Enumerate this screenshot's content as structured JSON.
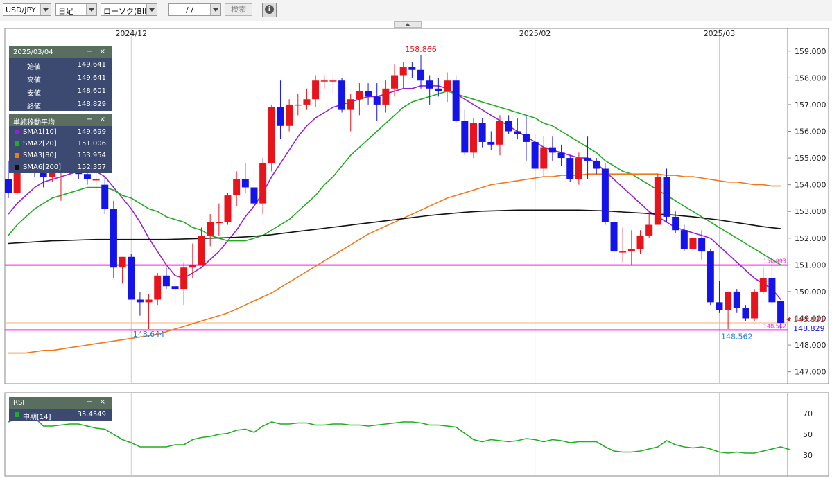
{
  "toolbar": {
    "pair": "USD/JPY",
    "period": "日足",
    "chart_kind": "ローソク(BID)",
    "date_input": "/ /",
    "search_label": "検索",
    "info_icon": "info-icon"
  },
  "ohlc_panel": {
    "date": "2025/03/04",
    "minimize": "−",
    "close": "×",
    "rows": [
      {
        "label": "始値",
        "value": "149.641"
      },
      {
        "label": "高値",
        "value": "149.641"
      },
      {
        "label": "安値",
        "value": "148.601"
      },
      {
        "label": "終値",
        "value": "148.829"
      }
    ]
  },
  "sma_panel": {
    "title": "単純移動平均",
    "minimize": "−",
    "close": "×",
    "rows": [
      {
        "label": "SMA1[10]",
        "value": "149.699",
        "color": "#9b1fd6"
      },
      {
        "label": "SMA2[20]",
        "value": "151.006",
        "color": "#1fae1f"
      },
      {
        "label": "SMA3[80]",
        "value": "153.954",
        "color": "#f07a1a"
      },
      {
        "label": "SMA6[200]",
        "value": "152.357",
        "color": "#111111"
      }
    ]
  },
  "rsi_panel": {
    "title": "RSI",
    "minimize": "−",
    "close": "×",
    "rows": [
      {
        "label": "中期[14]",
        "value": "35.4549",
        "color": "#1fae1f"
      }
    ]
  },
  "chart_data": {
    "type": "candlestick",
    "instrument": "USD/JPY",
    "x_labels": [
      {
        "label": "2024/12",
        "index": 14
      },
      {
        "label": "2025/02",
        "index": 60
      },
      {
        "label": "2025/03",
        "index": 81
      }
    ],
    "y_ticks": [
      147.0,
      148.0,
      149.0,
      150.0,
      151.0,
      152.0,
      153.0,
      154.0,
      155.0,
      156.0,
      157.0,
      158.0,
      159.0
    ],
    "y_tick_labels": [
      "147.000",
      "148.000",
      "149.000",
      "150.000",
      "151.000",
      "152.000",
      "153.000",
      "154.000",
      "155.000",
      "156.000",
      "157.000",
      "158.000",
      "159.000"
    ],
    "ylim": [
      146.55,
      159.85
    ],
    "up_color": "#e8141c",
    "down_color": "#1414e8",
    "candles": [
      {
        "o": 154.2,
        "h": 154.9,
        "l": 153.5,
        "c": 153.7
      },
      {
        "o": 153.7,
        "h": 155.2,
        "l": 153.6,
        "c": 155.0
      },
      {
        "o": 155.0,
        "h": 155.5,
        "l": 154.5,
        "c": 154.8
      },
      {
        "o": 154.8,
        "h": 155.4,
        "l": 154.3,
        "c": 154.5
      },
      {
        "o": 154.5,
        "h": 155.0,
        "l": 153.9,
        "c": 154.3
      },
      {
        "o": 154.3,
        "h": 155.0,
        "l": 154.1,
        "c": 154.7
      },
      {
        "o": 154.7,
        "h": 155.3,
        "l": 153.4,
        "c": 154.7
      },
      {
        "o": 154.7,
        "h": 155.3,
        "l": 154.4,
        "c": 155.1
      },
      {
        "o": 155.1,
        "h": 155.9,
        "l": 154.2,
        "c": 154.4
      },
      {
        "o": 154.4,
        "h": 154.8,
        "l": 154.0,
        "c": 154.2
      },
      {
        "o": 154.2,
        "h": 154.8,
        "l": 153.8,
        "c": 154.2
      },
      {
        "o": 154.0,
        "h": 154.3,
        "l": 152.9,
        "c": 153.1
      },
      {
        "o": 153.1,
        "h": 153.4,
        "l": 150.5,
        "c": 150.9
      },
      {
        "o": 150.9,
        "h": 151.3,
        "l": 150.3,
        "c": 151.3
      },
      {
        "o": 151.3,
        "h": 151.4,
        "l": 149.7,
        "c": 149.7
      },
      {
        "o": 149.7,
        "h": 150.0,
        "l": 149.1,
        "c": 149.6
      },
      {
        "o": 149.6,
        "h": 149.9,
        "l": 148.6,
        "c": 149.7
      },
      {
        "o": 149.7,
        "h": 150.7,
        "l": 149.5,
        "c": 150.6
      },
      {
        "o": 150.6,
        "h": 150.9,
        "l": 150.1,
        "c": 150.2
      },
      {
        "o": 150.2,
        "h": 150.4,
        "l": 149.5,
        "c": 150.1
      },
      {
        "o": 150.1,
        "h": 151.1,
        "l": 149.5,
        "c": 150.9
      },
      {
        "o": 150.9,
        "h": 151.8,
        "l": 150.5,
        "c": 151.0
      },
      {
        "o": 151.0,
        "h": 152.4,
        "l": 151.0,
        "c": 152.1
      },
      {
        "o": 152.1,
        "h": 152.9,
        "l": 151.7,
        "c": 152.6
      },
      {
        "o": 152.6,
        "h": 153.3,
        "l": 152.1,
        "c": 152.6
      },
      {
        "o": 152.6,
        "h": 153.7,
        "l": 152.5,
        "c": 153.6
      },
      {
        "o": 153.6,
        "h": 154.5,
        "l": 153.2,
        "c": 154.2
      },
      {
        "o": 154.2,
        "h": 154.8,
        "l": 153.7,
        "c": 153.9
      },
      {
        "o": 153.9,
        "h": 154.6,
        "l": 153.2,
        "c": 153.3
      },
      {
        "o": 153.3,
        "h": 155.0,
        "l": 152.9,
        "c": 154.8
      },
      {
        "o": 154.8,
        "h": 157.0,
        "l": 154.5,
        "c": 156.9
      },
      {
        "o": 156.9,
        "h": 157.9,
        "l": 155.7,
        "c": 156.2
      },
      {
        "o": 156.2,
        "h": 157.2,
        "l": 156.0,
        "c": 157.0
      },
      {
        "o": 157.0,
        "h": 157.4,
        "l": 156.6,
        "c": 157.0
      },
      {
        "o": 157.0,
        "h": 157.6,
        "l": 156.8,
        "c": 157.2
      },
      {
        "o": 157.2,
        "h": 158.1,
        "l": 156.9,
        "c": 157.9
      },
      {
        "o": 157.9,
        "h": 158.1,
        "l": 157.6,
        "c": 157.9
      },
      {
        "o": 157.9,
        "h": 158.1,
        "l": 157.4,
        "c": 157.9
      },
      {
        "o": 157.9,
        "h": 158.0,
        "l": 156.7,
        "c": 156.8
      },
      {
        "o": 156.8,
        "h": 157.4,
        "l": 156.0,
        "c": 157.2
      },
      {
        "o": 157.2,
        "h": 157.8,
        "l": 156.6,
        "c": 157.5
      },
      {
        "o": 157.5,
        "h": 157.8,
        "l": 157.0,
        "c": 157.3
      },
      {
        "o": 157.3,
        "h": 157.8,
        "l": 156.4,
        "c": 157.0
      },
      {
        "o": 157.0,
        "h": 157.9,
        "l": 156.7,
        "c": 157.6
      },
      {
        "o": 157.6,
        "h": 158.5,
        "l": 157.3,
        "c": 158.1
      },
      {
        "o": 158.1,
        "h": 158.6,
        "l": 157.6,
        "c": 158.4
      },
      {
        "o": 158.4,
        "h": 158.6,
        "l": 158.0,
        "c": 158.3
      },
      {
        "o": 158.3,
        "h": 158.866,
        "l": 157.6,
        "c": 157.9
      },
      {
        "o": 157.9,
        "h": 158.1,
        "l": 157.0,
        "c": 157.6
      },
      {
        "o": 157.6,
        "h": 158.0,
        "l": 157.3,
        "c": 157.5
      },
      {
        "o": 157.5,
        "h": 158.2,
        "l": 157.1,
        "c": 157.9
      },
      {
        "o": 157.9,
        "h": 158.1,
        "l": 156.3,
        "c": 156.4
      },
      {
        "o": 156.4,
        "h": 156.8,
        "l": 155.1,
        "c": 155.2
      },
      {
        "o": 155.2,
        "h": 156.5,
        "l": 155.0,
        "c": 156.3
      },
      {
        "o": 156.3,
        "h": 156.5,
        "l": 155.4,
        "c": 155.6
      },
      {
        "o": 155.6,
        "h": 156.0,
        "l": 155.3,
        "c": 155.5
      },
      {
        "o": 155.5,
        "h": 156.6,
        "l": 155.1,
        "c": 156.4
      },
      {
        "o": 156.4,
        "h": 156.6,
        "l": 155.9,
        "c": 156.0
      },
      {
        "o": 156.0,
        "h": 156.5,
        "l": 155.7,
        "c": 155.9
      },
      {
        "o": 155.9,
        "h": 156.6,
        "l": 154.9,
        "c": 155.6
      },
      {
        "o": 155.6,
        "h": 155.9,
        "l": 153.8,
        "c": 154.6
      },
      {
        "o": 154.6,
        "h": 155.8,
        "l": 154.3,
        "c": 155.4
      },
      {
        "o": 155.4,
        "h": 155.8,
        "l": 154.9,
        "c": 155.2
      },
      {
        "o": 155.2,
        "h": 155.5,
        "l": 154.7,
        "c": 155.0
      },
      {
        "o": 155.0,
        "h": 155.1,
        "l": 154.1,
        "c": 154.2
      },
      {
        "o": 154.2,
        "h": 155.2,
        "l": 154.0,
        "c": 155.0
      },
      {
        "o": 155.0,
        "h": 155.8,
        "l": 154.2,
        "c": 154.9
      },
      {
        "o": 154.9,
        "h": 155.0,
        "l": 154.4,
        "c": 154.6
      },
      {
        "o": 154.6,
        "h": 154.8,
        "l": 152.5,
        "c": 152.6
      },
      {
        "o": 152.6,
        "h": 153.0,
        "l": 151.0,
        "c": 151.5
      },
      {
        "o": 151.5,
        "h": 152.4,
        "l": 151.1,
        "c": 151.5
      },
      {
        "o": 151.5,
        "h": 152.3,
        "l": 151.0,
        "c": 151.6
      },
      {
        "o": 151.6,
        "h": 152.3,
        "l": 151.4,
        "c": 152.1
      },
      {
        "o": 152.1,
        "h": 153.0,
        "l": 152.0,
        "c": 152.5
      },
      {
        "o": 152.5,
        "h": 154.4,
        "l": 152.5,
        "c": 154.3
      },
      {
        "o": 154.3,
        "h": 154.6,
        "l": 152.6,
        "c": 152.8
      },
      {
        "o": 152.8,
        "h": 153.0,
        "l": 152.2,
        "c": 152.3
      },
      {
        "o": 152.3,
        "h": 152.5,
        "l": 151.5,
        "c": 151.6
      },
      {
        "o": 151.6,
        "h": 152.2,
        "l": 151.3,
        "c": 152.0
      },
      {
        "o": 152.0,
        "h": 152.3,
        "l": 151.2,
        "c": 151.5
      },
      {
        "o": 151.5,
        "h": 151.6,
        "l": 149.5,
        "c": 149.6
      },
      {
        "o": 149.6,
        "h": 150.4,
        "l": 149.2,
        "c": 149.3
      },
      {
        "o": 149.3,
        "h": 150.0,
        "l": 148.6,
        "c": 150.0
      },
      {
        "o": 150.0,
        "h": 150.1,
        "l": 149.2,
        "c": 149.4
      },
      {
        "o": 149.4,
        "h": 149.5,
        "l": 148.9,
        "c": 149.0
      },
      {
        "o": 149.0,
        "h": 150.1,
        "l": 148.9,
        "c": 150.0
      },
      {
        "o": 150.0,
        "h": 150.9,
        "l": 149.9,
        "c": 150.5
      },
      {
        "o": 150.5,
        "h": 151.2,
        "l": 149.5,
        "c": 149.6
      },
      {
        "o": 149.641,
        "h": 149.641,
        "l": 148.601,
        "c": 148.829
      }
    ],
    "sma": [
      {
        "name": "SMA1[10]",
        "color": "#9b1fd6",
        "values": [
          152.9,
          153.3,
          153.6,
          153.9,
          154.1,
          154.2,
          154.3,
          154.4,
          154.5,
          154.5,
          154.5,
          154.3,
          153.9,
          153.5,
          153.1,
          152.6,
          152.0,
          151.5,
          151.0,
          150.6,
          150.5,
          150.7,
          150.9,
          151.2,
          151.5,
          151.9,
          152.3,
          152.8,
          153.2,
          153.7,
          154.3,
          154.8,
          155.3,
          155.8,
          156.2,
          156.5,
          156.7,
          156.9,
          157.0,
          157.1,
          157.2,
          157.3,
          157.3,
          157.4,
          157.5,
          157.6,
          157.6,
          157.7,
          157.7,
          157.7,
          157.6,
          157.4,
          157.2,
          157.0,
          156.8,
          156.6,
          156.4,
          156.2,
          156.0,
          155.8,
          155.6,
          155.4,
          155.3,
          155.2,
          155.1,
          155.0,
          155.0,
          154.8,
          154.5,
          154.2,
          153.9,
          153.6,
          153.3,
          153.0,
          152.8,
          152.6,
          152.4,
          152.3,
          152.2,
          152.1,
          152.0,
          151.7,
          151.4,
          151.1,
          150.8,
          150.5,
          150.3,
          150.1,
          149.7
        ]
      },
      {
        "name": "SMA2[20]",
        "color": "#1fae1f",
        "values": [
          152.1,
          152.5,
          152.8,
          153.1,
          153.3,
          153.5,
          153.6,
          153.7,
          153.8,
          153.9,
          153.9,
          153.9,
          153.8,
          153.6,
          153.5,
          153.3,
          153.1,
          153.0,
          152.8,
          152.7,
          152.6,
          152.4,
          152.3,
          152.1,
          152.0,
          151.9,
          151.9,
          151.9,
          152.0,
          152.1,
          152.3,
          152.5,
          152.7,
          153.0,
          153.3,
          153.6,
          154.0,
          154.3,
          154.7,
          155.1,
          155.4,
          155.7,
          156.0,
          156.3,
          156.6,
          156.9,
          157.1,
          157.2,
          157.3,
          157.4,
          157.5,
          157.4,
          157.3,
          157.2,
          157.1,
          157.0,
          156.9,
          156.8,
          156.7,
          156.6,
          156.5,
          156.3,
          156.2,
          156.0,
          155.8,
          155.6,
          155.4,
          155.2,
          154.9,
          154.7,
          154.5,
          154.4,
          154.2,
          154.0,
          153.8,
          153.6,
          153.4,
          153.2,
          153.0,
          152.8,
          152.6,
          152.4,
          152.2,
          152.0,
          151.8,
          151.6,
          151.4,
          151.2,
          151.0
        ]
      },
      {
        "name": "SMA3[80]",
        "color": "#f07a1a",
        "values": [
          147.7,
          147.7,
          147.7,
          147.75,
          147.8,
          147.8,
          147.85,
          147.9,
          147.95,
          148.0,
          148.05,
          148.1,
          148.15,
          148.2,
          148.25,
          148.3,
          148.35,
          148.4,
          148.5,
          148.6,
          148.7,
          148.8,
          148.9,
          149.0,
          149.1,
          149.2,
          149.35,
          149.5,
          149.65,
          149.8,
          149.95,
          150.15,
          150.35,
          150.55,
          150.75,
          150.95,
          151.15,
          151.35,
          151.55,
          151.75,
          151.95,
          152.15,
          152.3,
          152.45,
          152.6,
          152.75,
          152.9,
          153.05,
          153.2,
          153.35,
          153.5,
          153.6,
          153.7,
          153.8,
          153.9,
          154.0,
          154.05,
          154.1,
          154.15,
          154.2,
          154.25,
          154.3,
          154.3,
          154.35,
          154.35,
          154.35,
          154.4,
          154.4,
          154.4,
          154.4,
          154.4,
          154.4,
          154.4,
          154.4,
          154.4,
          154.35,
          154.35,
          154.3,
          154.3,
          154.25,
          154.2,
          154.15,
          154.1,
          154.1,
          154.05,
          154.0,
          154.0,
          153.95,
          153.954
        ]
      },
      {
        "name": "SMA6[200]",
        "color": "#111111",
        "values": [
          151.8,
          151.82,
          151.84,
          151.86,
          151.88,
          151.9,
          151.91,
          151.92,
          151.93,
          151.94,
          151.95,
          151.95,
          151.95,
          151.95,
          151.95,
          151.95,
          151.95,
          151.95,
          151.95,
          151.96,
          151.97,
          151.98,
          151.99,
          152.0,
          152.01,
          152.02,
          152.03,
          152.05,
          152.07,
          152.1,
          152.13,
          152.17,
          152.21,
          152.25,
          152.29,
          152.33,
          152.37,
          152.41,
          152.45,
          152.49,
          152.53,
          152.57,
          152.61,
          152.65,
          152.69,
          152.73,
          152.77,
          152.81,
          152.85,
          152.88,
          152.91,
          152.94,
          152.97,
          152.99,
          153.01,
          153.02,
          153.03,
          153.04,
          153.05,
          153.05,
          153.05,
          153.05,
          153.05,
          153.05,
          153.05,
          153.05,
          153.04,
          153.03,
          153.02,
          153.0,
          152.98,
          152.96,
          152.94,
          152.92,
          152.9,
          152.88,
          152.86,
          152.83,
          152.8,
          152.76,
          152.72,
          152.68,
          152.63,
          152.58,
          152.53,
          152.48,
          152.43,
          152.39,
          152.357
        ]
      }
    ],
    "horizontal_lines": [
      {
        "value": 150.993,
        "label": "150.993",
        "color": "#ff22e6"
      },
      {
        "value": 148.562,
        "label": "148.562",
        "color": "#ff22e6"
      },
      {
        "value": 148.831,
        "label": "",
        "color": "#f5b277"
      }
    ],
    "annotations": [
      {
        "label": "158.866",
        "value": 158.866,
        "index": 47,
        "color": "#e8141c"
      },
      {
        "label": "148.644",
        "value": 148.644,
        "index": 16,
        "color": "#2a7fd6"
      },
      {
        "label": "148.562",
        "value": 148.562,
        "index": 83,
        "color": "#2a7fd6"
      }
    ],
    "price_markers": [
      {
        "label": "148.831",
        "value": 148.831,
        "color": "#e8141c"
      },
      {
        "label": "148.829",
        "value": 148.829,
        "color": "#1414e8"
      }
    ],
    "rsi": {
      "name": "中期[14]",
      "color": "#1fae1f",
      "y_ticks": [
        70,
        50,
        30
      ],
      "ylim": [
        10,
        90
      ],
      "values": [
        62,
        65,
        70,
        66,
        58,
        58,
        59,
        60,
        60,
        58,
        56,
        55,
        50,
        45,
        42,
        38,
        38,
        38,
        38,
        40,
        40,
        45,
        47,
        48,
        50,
        51,
        54,
        55,
        52,
        58,
        62,
        60,
        60,
        61,
        61,
        59,
        59,
        60,
        60,
        59,
        59,
        58,
        59,
        60,
        61,
        62,
        62,
        61,
        59,
        59,
        58,
        57,
        51,
        45,
        43,
        45,
        44,
        43,
        44,
        46,
        45,
        43,
        45,
        44,
        42,
        43,
        43,
        43,
        38,
        34,
        33,
        33,
        34,
        36,
        38,
        44,
        40,
        38,
        37,
        38,
        36,
        33,
        32,
        33,
        32,
        32,
        34,
        36,
        38,
        35.4549
      ]
    }
  }
}
